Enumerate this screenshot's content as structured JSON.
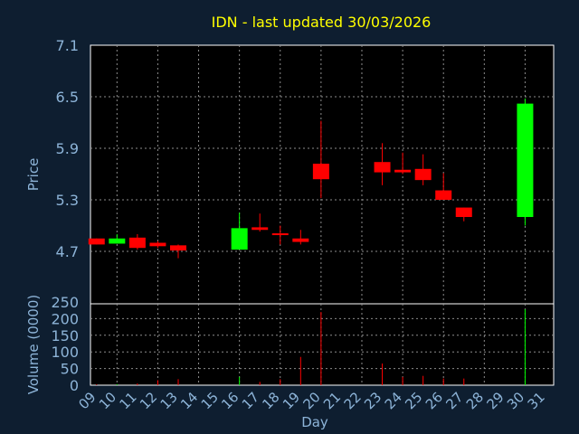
{
  "chart_data": [
    {
      "type": "candlestick",
      "title": "IDN - last updated 30/03/2026",
      "ylabel": "Price",
      "ylim": [
        4.4,
        7.1
      ],
      "yticks": [
        "7.1",
        "6.5",
        "5.9",
        "5.3",
        "4.7"
      ],
      "grid": true,
      "candles": [
        {
          "x": 9,
          "open": 4.78,
          "high": 4.85,
          "low": 4.78,
          "close": 4.85,
          "color": "#ff0000"
        },
        {
          "x": 10,
          "open": 4.79,
          "high": 4.9,
          "low": 4.79,
          "close": 4.85,
          "color": "#00ff00"
        },
        {
          "x": 11,
          "open": 4.86,
          "high": 4.9,
          "low": 4.72,
          "close": 4.74,
          "color": "#ff0000"
        },
        {
          "x": 12,
          "open": 4.8,
          "high": 4.82,
          "low": 4.74,
          "close": 4.76,
          "color": "#ff0000"
        },
        {
          "x": 13,
          "open": 4.77,
          "high": 4.78,
          "low": 4.62,
          "close": 4.71,
          "color": "#ff0000"
        },
        {
          "x": 16,
          "open": 4.72,
          "high": 5.15,
          "low": 4.72,
          "close": 4.97,
          "color": "#00ff00"
        },
        {
          "x": 17,
          "open": 4.98,
          "high": 5.14,
          "low": 4.93,
          "close": 4.95,
          "color": "#ff0000"
        },
        {
          "x": 18,
          "open": 4.91,
          "high": 5.0,
          "low": 4.78,
          "close": 4.9,
          "color": "#ff0000"
        },
        {
          "x": 19,
          "open": 4.85,
          "high": 4.95,
          "low": 4.78,
          "close": 4.81,
          "color": "#ff0000"
        },
        {
          "x": 20,
          "open": 5.72,
          "high": 6.22,
          "low": 5.32,
          "close": 5.54,
          "color": "#ff0000"
        },
        {
          "x": 23,
          "open": 5.74,
          "high": 5.96,
          "low": 5.47,
          "close": 5.62,
          "color": "#ff0000"
        },
        {
          "x": 24,
          "open": 5.65,
          "high": 5.85,
          "low": 5.6,
          "close": 5.62,
          "color": "#ff0000"
        },
        {
          "x": 25,
          "open": 5.66,
          "high": 5.83,
          "low": 5.47,
          "close": 5.53,
          "color": "#ff0000"
        },
        {
          "x": 26,
          "open": 5.41,
          "high": 5.61,
          "low": 5.3,
          "close": 5.3,
          "color": "#ff0000"
        },
        {
          "x": 27,
          "open": 5.21,
          "high": 5.21,
          "low": 5.05,
          "close": 5.1,
          "color": "#ff0000"
        },
        {
          "x": 30,
          "open": 5.1,
          "high": 6.48,
          "low": 5.0,
          "close": 6.42,
          "color": "#00ff00"
        }
      ]
    },
    {
      "type": "bar",
      "ylabel": "Volume (0000)",
      "xlabel": "Day",
      "ylim": [
        0,
        250
      ],
      "yticks": [
        "250",
        "200",
        "150",
        "100",
        "50",
        "0"
      ],
      "grid": true,
      "categories": [
        "09",
        "10",
        "11",
        "12",
        "13",
        "14",
        "15",
        "16",
        "17",
        "18",
        "19",
        "20",
        "21",
        "22",
        "23",
        "24",
        "25",
        "26",
        "27",
        "28",
        "29",
        "30",
        "31"
      ],
      "volumes": [
        {
          "x": 9,
          "value": 2,
          "color": "#ff0000"
        },
        {
          "x": 10,
          "value": 3,
          "color": "#00ff00"
        },
        {
          "x": 11,
          "value": 5,
          "color": "#ff0000"
        },
        {
          "x": 12,
          "value": 15,
          "color": "#ff0000"
        },
        {
          "x": 13,
          "value": 18,
          "color": "#ff0000"
        },
        {
          "x": 16,
          "value": 25,
          "color": "#00ff00"
        },
        {
          "x": 17,
          "value": 10,
          "color": "#ff0000"
        },
        {
          "x": 18,
          "value": 18,
          "color": "#ff0000"
        },
        {
          "x": 19,
          "value": 85,
          "color": "#ff0000"
        },
        {
          "x": 20,
          "value": 220,
          "color": "#ff0000"
        },
        {
          "x": 23,
          "value": 65,
          "color": "#ff0000"
        },
        {
          "x": 24,
          "value": 25,
          "color": "#ff0000"
        },
        {
          "x": 25,
          "value": 28,
          "color": "#ff0000"
        },
        {
          "x": 26,
          "value": 20,
          "color": "#ff0000"
        },
        {
          "x": 27,
          "value": 20,
          "color": "#ff0000"
        },
        {
          "x": 30,
          "value": 228,
          "color": "#00ff00"
        }
      ]
    }
  ],
  "colors": {
    "background": "#0e1e30",
    "plot_background": "#000000",
    "grid": "#8c8c8c",
    "text": "#8db4d8",
    "title": "#ffff00"
  }
}
